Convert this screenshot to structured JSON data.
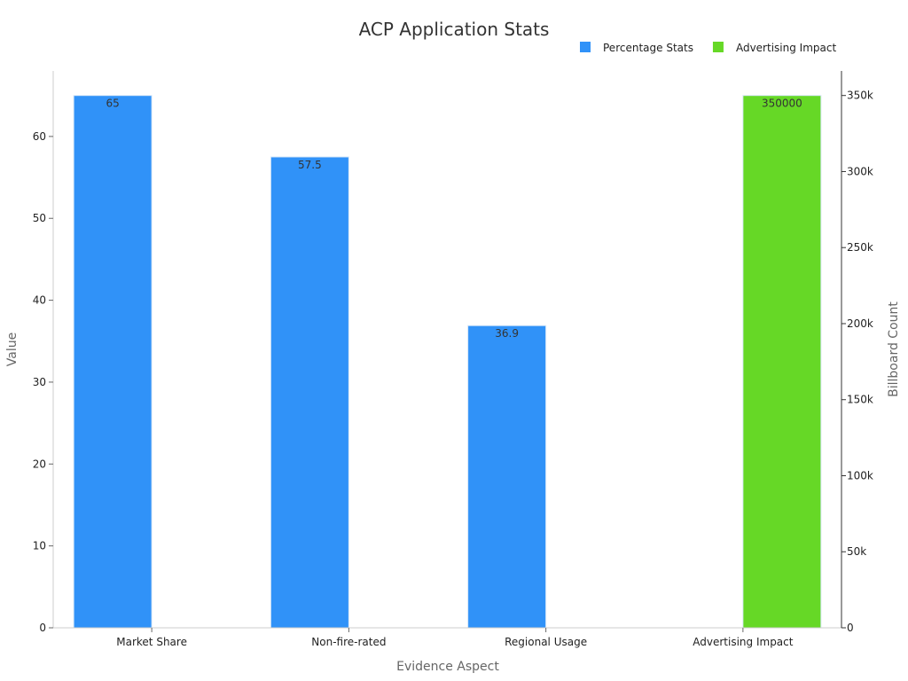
{
  "chart_data": {
    "type": "bar",
    "title": "ACP Application Stats",
    "xlabel": "Evidence Aspect",
    "ylabel": "Value",
    "y2label": "Billboard Count",
    "categories": [
      "Market Share",
      "Non-fire-rated",
      "Regional Usage",
      "Advertising Impact"
    ],
    "series": [
      {
        "name": "Percentage Stats",
        "axis": "left",
        "color": "#3092f8",
        "values": [
          65,
          57.5,
          36.9,
          null
        ]
      },
      {
        "name": "Advertising Impact",
        "axis": "right",
        "color": "#66d826",
        "values": [
          null,
          null,
          null,
          350000
        ]
      }
    ],
    "ylim": [
      0,
      68
    ],
    "y_ticks": [
      0,
      10,
      20,
      30,
      40,
      50,
      60
    ],
    "y2lim": [
      0,
      366153
    ],
    "y2_ticks": [
      0,
      50000,
      100000,
      150000,
      200000,
      250000,
      300000,
      350000
    ],
    "y2_tick_labels": [
      "0",
      "50k",
      "100k",
      "150k",
      "200k",
      "250k",
      "300k",
      "350k"
    ],
    "legend_position": "top-right",
    "grid": false
  }
}
